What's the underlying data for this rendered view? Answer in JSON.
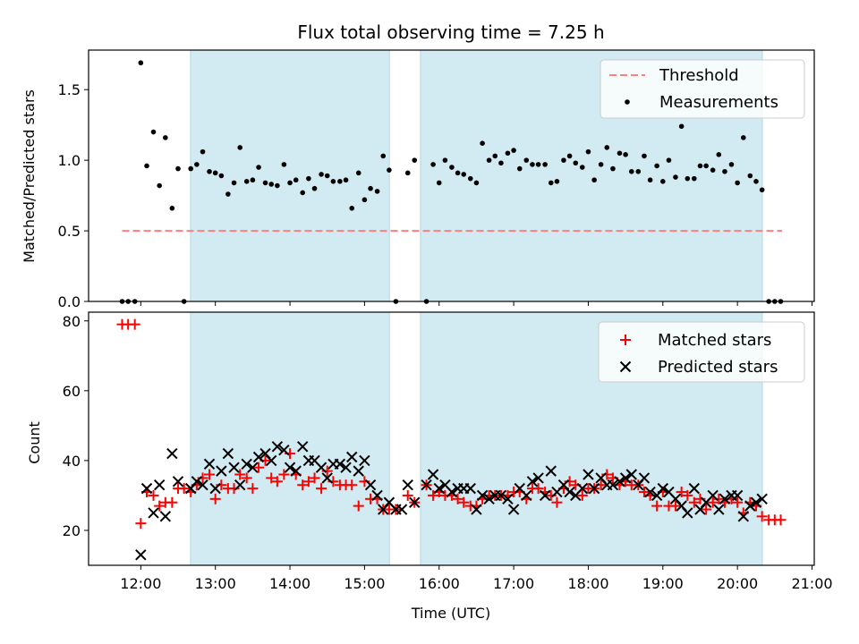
{
  "chart_data": {
    "title": "Flux total observing time = 7.25 h",
    "shaded_intervals_hours": [
      [
        12.667,
        15.333
      ],
      [
        15.75,
        20.333
      ]
    ],
    "colors": {
      "shade": "#add8e6",
      "threshold": "#ff7f7f",
      "measurement": "#000000",
      "matched": "#ff0000",
      "predicted": "#000000"
    },
    "top": {
      "type": "scatter",
      "ylabel": "Matched/Predicted stars",
      "xlim": [
        11.3,
        21.03
      ],
      "ylim": [
        0,
        1.78
      ],
      "yticks": [
        0.0,
        0.5,
        1.0,
        1.5
      ],
      "ytick_labels": [
        "0.0",
        "0.5",
        "1.0",
        "1.5"
      ],
      "threshold": {
        "label": "Threshold",
        "value": 0.5,
        "x_range": [
          11.75,
          20.6
        ]
      },
      "series": [
        {
          "name": "Measurements",
          "x": [
            11.75,
            11.83,
            11.92,
            12.0,
            12.08,
            12.17,
            12.25,
            12.33,
            12.42,
            12.5,
            12.58,
            12.67,
            12.75,
            12.83,
            12.92,
            13.0,
            13.08,
            13.17,
            13.25,
            13.33,
            13.42,
            13.5,
            13.58,
            13.67,
            13.75,
            13.83,
            13.92,
            14.0,
            14.08,
            14.17,
            14.25,
            14.33,
            14.42,
            14.5,
            14.58,
            14.67,
            14.75,
            14.83,
            14.92,
            15.0,
            15.08,
            15.17,
            15.25,
            15.33,
            15.42,
            15.58,
            15.67,
            15.83,
            15.92,
            16.0,
            16.08,
            16.17,
            16.25,
            16.33,
            16.42,
            16.5,
            16.58,
            16.67,
            16.75,
            16.83,
            16.92,
            17.0,
            17.08,
            17.17,
            17.25,
            17.33,
            17.42,
            17.5,
            17.58,
            17.67,
            17.75,
            17.83,
            17.92,
            18.0,
            18.08,
            18.17,
            18.25,
            18.33,
            18.42,
            18.5,
            18.58,
            18.67,
            18.75,
            18.83,
            18.92,
            19.0,
            19.08,
            19.17,
            19.25,
            19.33,
            19.42,
            19.5,
            19.58,
            19.67,
            19.75,
            19.83,
            19.92,
            20.0,
            20.08,
            20.17,
            20.25,
            20.33,
            20.42,
            20.5,
            20.58
          ],
          "y": [
            0,
            0,
            0,
            1.69,
            0.96,
            1.2,
            0.82,
            1.16,
            0.66,
            0.94,
            0,
            0.94,
            0.97,
            1.06,
            0.92,
            0.91,
            0.89,
            0.76,
            0.84,
            1.09,
            0.85,
            0.86,
            0.95,
            0.84,
            0.83,
            0.82,
            0.97,
            0.84,
            0.86,
            0.77,
            0.87,
            0.8,
            0.9,
            0.89,
            0.85,
            0.85,
            0.86,
            0.66,
            0.91,
            0.72,
            0.8,
            0.78,
            1.03,
            0.93,
            0,
            0.91,
            1.0,
            0,
            0.97,
            0.84,
            1.0,
            0.95,
            0.91,
            0.9,
            0.87,
            0.84,
            1.12,
            1.0,
            1.03,
            0.98,
            1.05,
            1.07,
            0.94,
            1.0,
            0.97,
            0.97,
            0.97,
            0.84,
            0.85,
            1.0,
            1.03,
            0.98,
            0.95,
            1.06,
            0.86,
            0.97,
            1.09,
            0.94,
            1.05,
            1.04,
            0.92,
            0.92,
            1.03,
            0.86,
            0.96,
            0.85,
            1.0,
            0.88,
            1.24,
            0.87,
            0.87,
            0.96,
            0.96,
            0.93,
            1.04,
            0.92,
            0.97,
            0.84,
            1.16,
            0.89,
            0.85,
            0.79,
            0,
            0,
            0
          ]
        }
      ]
    },
    "bottom": {
      "type": "scatter",
      "xlabel": "Time (UTC)",
      "ylabel": "Count",
      "xlim": [
        11.3,
        21.03
      ],
      "ylim": [
        10,
        82.5
      ],
      "yticks": [
        20,
        40,
        60,
        80
      ],
      "ytick_labels": [
        "20",
        "40",
        "60",
        "80"
      ],
      "xticks": [
        12,
        13,
        14,
        15,
        16,
        17,
        18,
        19,
        20,
        21
      ],
      "xtick_labels": [
        "12:00",
        "13:00",
        "14:00",
        "15:00",
        "16:00",
        "17:00",
        "18:00",
        "19:00",
        "20:00",
        "21:00"
      ],
      "series": [
        {
          "name": "Matched stars",
          "marker": "plus",
          "x": [
            11.75,
            11.83,
            11.92,
            12.0,
            12.08,
            12.17,
            12.25,
            12.33,
            12.42,
            12.5,
            12.58,
            12.67,
            12.75,
            12.83,
            12.92,
            13.0,
            13.08,
            13.17,
            13.25,
            13.33,
            13.42,
            13.5,
            13.58,
            13.67,
            13.75,
            13.83,
            13.92,
            14.0,
            14.08,
            14.17,
            14.25,
            14.33,
            14.42,
            14.5,
            14.58,
            14.67,
            14.75,
            14.83,
            14.92,
            15.0,
            15.08,
            15.17,
            15.25,
            15.33,
            15.42,
            15.58,
            15.67,
            15.83,
            15.92,
            16.0,
            16.08,
            16.17,
            16.25,
            16.33,
            16.42,
            16.5,
            16.58,
            16.67,
            16.75,
            16.83,
            16.92,
            17.0,
            17.08,
            17.17,
            17.25,
            17.33,
            17.42,
            17.5,
            17.58,
            17.67,
            17.75,
            17.83,
            17.92,
            18.0,
            18.08,
            18.17,
            18.25,
            18.33,
            18.42,
            18.5,
            18.58,
            18.67,
            18.75,
            18.83,
            18.92,
            19.0,
            19.08,
            19.17,
            19.25,
            19.33,
            19.42,
            19.5,
            19.58,
            19.67,
            19.75,
            19.83,
            19.92,
            20.0,
            20.08,
            20.17,
            20.25,
            20.33,
            20.42,
            20.5,
            20.58
          ],
          "y": [
            79,
            79,
            79,
            22,
            31,
            30,
            27,
            28,
            28,
            32,
            32,
            31,
            33,
            35,
            36,
            29,
            33,
            32,
            32,
            36,
            35,
            32,
            38,
            40,
            35,
            34,
            36,
            42,
            36,
            33,
            34,
            35,
            32,
            37,
            34,
            33,
            33,
            33,
            27,
            34,
            29,
            29,
            26,
            26,
            26,
            30,
            28,
            33,
            30,
            31,
            30,
            30,
            29,
            28,
            27,
            27,
            29,
            30,
            30,
            30,
            30,
            31,
            31,
            29,
            32,
            32,
            31,
            30,
            28,
            32,
            34,
            33,
            30,
            32,
            32,
            33,
            36,
            35,
            33,
            34,
            33,
            33,
            31,
            30,
            27,
            31,
            27,
            27,
            31,
            30,
            28,
            29,
            26,
            28,
            29,
            28,
            29,
            28,
            25,
            28,
            27,
            24,
            23,
            23,
            23
          ]
        },
        {
          "name": "Predicted stars",
          "marker": "x",
          "x": [
            12.0,
            12.08,
            12.17,
            12.25,
            12.33,
            12.42,
            12.5,
            12.67,
            12.75,
            12.83,
            12.92,
            13.0,
            13.08,
            13.17,
            13.25,
            13.33,
            13.42,
            13.5,
            13.58,
            13.67,
            13.75,
            13.83,
            13.92,
            14.0,
            14.08,
            14.17,
            14.25,
            14.33,
            14.42,
            14.5,
            14.58,
            14.67,
            14.75,
            14.83,
            14.92,
            15.0,
            15.08,
            15.17,
            15.25,
            15.33,
            15.42,
            15.5,
            15.58,
            15.67,
            15.83,
            15.92,
            16.0,
            16.08,
            16.17,
            16.25,
            16.33,
            16.42,
            16.5,
            16.58,
            16.67,
            16.75,
            16.83,
            16.92,
            17.0,
            17.08,
            17.17,
            17.25,
            17.33,
            17.42,
            17.5,
            17.58,
            17.67,
            17.75,
            17.83,
            17.92,
            18.0,
            18.08,
            18.17,
            18.25,
            18.33,
            18.42,
            18.5,
            18.58,
            18.67,
            18.75,
            18.83,
            18.92,
            19.0,
            19.08,
            19.17,
            19.25,
            19.33,
            19.42,
            19.5,
            19.58,
            19.67,
            19.75,
            19.83,
            19.92,
            20.0,
            20.08,
            20.17,
            20.25,
            20.33
          ],
          "y": [
            13,
            32,
            25,
            33,
            24,
            42,
            34,
            32,
            34,
            33,
            39,
            32,
            37,
            42,
            38,
            33,
            39,
            38,
            41,
            42,
            40,
            44,
            43,
            38,
            37,
            44,
            40,
            40,
            38,
            35,
            39,
            39,
            38,
            41,
            37,
            40,
            33,
            30,
            26,
            28,
            26,
            26,
            33,
            28,
            33,
            36,
            32,
            33,
            31,
            32,
            32,
            32,
            26,
            30,
            29,
            30,
            30,
            29,
            26,
            32,
            30,
            34,
            35,
            30,
            37,
            31,
            33,
            31,
            30,
            32,
            36,
            32,
            35,
            33,
            33,
            34,
            35,
            36,
            33,
            35,
            31,
            30,
            32,
            31,
            29,
            27,
            25,
            32,
            26,
            28,
            30,
            26,
            29,
            30,
            30,
            24,
            27,
            28,
            29
          ]
        }
      ]
    }
  }
}
